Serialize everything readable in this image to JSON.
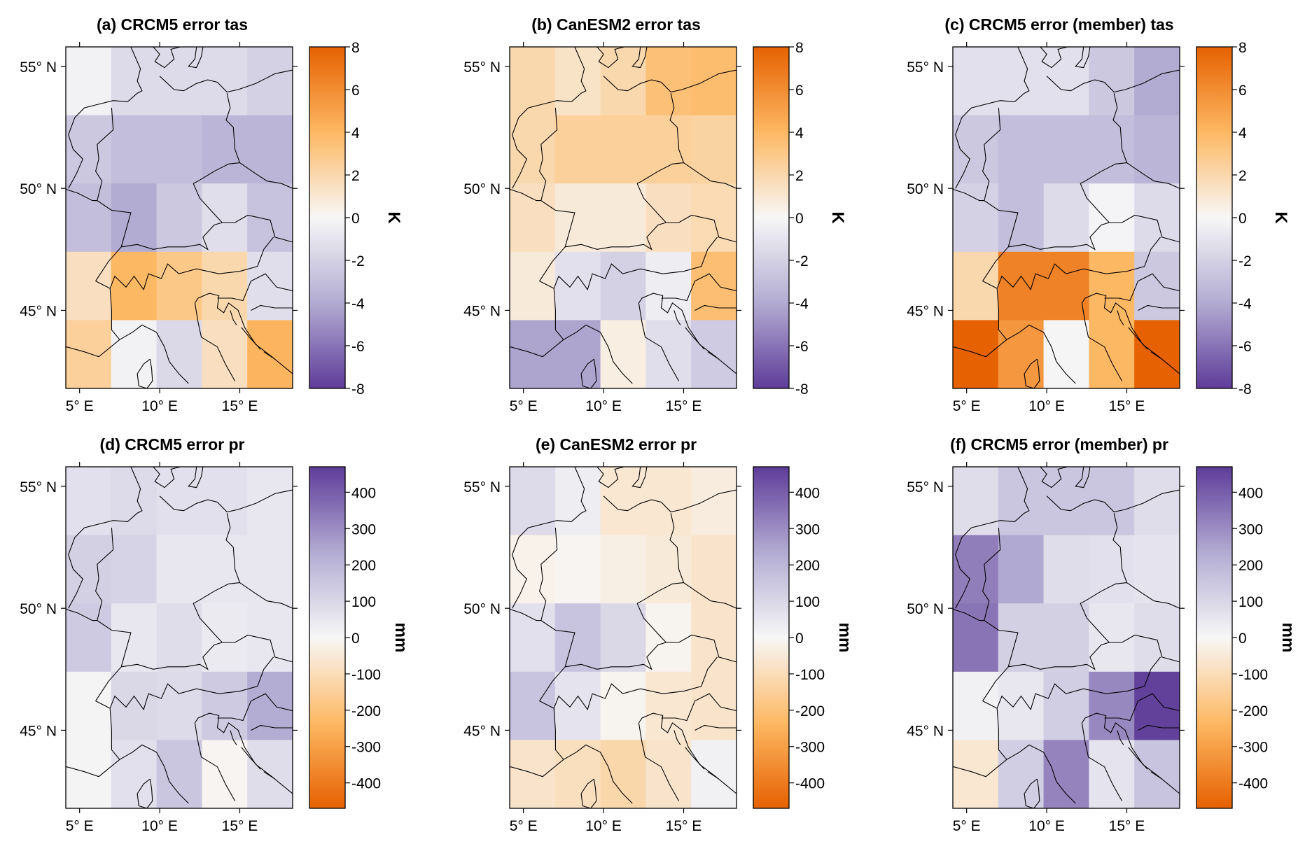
{
  "figure": {
    "colormap": [
      "#e66101",
      "#fdb863",
      "#f7f7f7",
      "#b2abd2",
      "#5e3c99"
    ],
    "colors": {
      "positive_warm": "#e66101",
      "neutral": "#f7f7f7",
      "negative_cool": "#5e3c99",
      "outline": "#000000"
    }
  },
  "chart_data": [
    {
      "type": "heatmap",
      "id": "a",
      "title": "(a) CRCM5 error tas",
      "variable": "tas",
      "unit": "K",
      "xlabel": "",
      "ylabel": "",
      "x_ticks": [
        "5° E",
        "10° E",
        "15° E"
      ],
      "x_tick_values": [
        5,
        10,
        15
      ],
      "y_ticks": [
        "55° N",
        "50° N",
        "45° N"
      ],
      "y_tick_values": [
        55,
        50,
        45
      ],
      "xlim": [
        4.14,
        18.3
      ],
      "ylim": [
        41.8,
        55.8
      ],
      "colorbar": {
        "min": -8,
        "max": 8,
        "ticks": [
          8,
          6,
          4,
          2,
          0,
          -2,
          -4,
          -6,
          -8
        ],
        "reversed": false
      },
      "grid_rows_north_to_south": [
        [
          -0.3,
          -1.5,
          -1.5,
          -1.5,
          -2.0
        ],
        [
          -2.5,
          -3.0,
          -3.0,
          -3.5,
          -3.5
        ],
        [
          -3.0,
          -4.0,
          -2.5,
          -1.3,
          -2.8
        ],
        [
          1.5,
          4.0,
          3.0,
          2.0,
          -1.3
        ],
        [
          2.5,
          -0.3,
          -1.6,
          1.5,
          4.2
        ]
      ]
    },
    {
      "type": "heatmap",
      "id": "b",
      "title": "(b) CanESM2 error tas",
      "variable": "tas",
      "unit": "K",
      "xlabel": "",
      "ylabel": "",
      "x_ticks": [
        "5° E",
        "10° E",
        "15° E"
      ],
      "x_tick_values": [
        5,
        10,
        15
      ],
      "y_ticks": [
        "55° N",
        "50° N",
        "45° N"
      ],
      "y_tick_values": [
        55,
        50,
        45
      ],
      "xlim": [
        4.14,
        18.3
      ],
      "ylim": [
        41.8,
        55.8
      ],
      "colorbar": {
        "min": -8,
        "max": 8,
        "ticks": [
          8,
          6,
          4,
          2,
          0,
          -2,
          -4,
          -6,
          -8
        ],
        "reversed": false
      },
      "grid_rows_north_to_south": [
        [
          2.0,
          1.3,
          2.0,
          3.5,
          3.7
        ],
        [
          2.0,
          2.5,
          2.5,
          2.5,
          2.3
        ],
        [
          1.5,
          0.8,
          0.8,
          1.5,
          1.8
        ],
        [
          0.8,
          -1.2,
          -2.0,
          -0.5,
          3.6
        ],
        [
          -4.2,
          -4.2,
          0.6,
          -1.3,
          -2.3
        ]
      ]
    },
    {
      "type": "heatmap",
      "id": "c",
      "title": "(c) CRCM5 error (member) tas",
      "variable": "tas",
      "unit": "K",
      "xlabel": "",
      "ylabel": "",
      "x_ticks": [
        "5° E",
        "10° E",
        "15° E"
      ],
      "x_tick_values": [
        5,
        10,
        15
      ],
      "y_ticks": [
        "55° N",
        "50° N",
        "45° N"
      ],
      "y_tick_values": [
        55,
        50,
        45
      ],
      "xlim": [
        4.14,
        18.3
      ],
      "ylim": [
        41.8,
        55.8
      ],
      "colorbar": {
        "min": -8,
        "max": 8,
        "ticks": [
          8,
          6,
          4,
          2,
          0,
          -2,
          -4,
          -6,
          -8
        ],
        "reversed": false
      },
      "grid_rows_north_to_south": [
        [
          -1.2,
          -1.2,
          -1.2,
          -2.5,
          -4.0
        ],
        [
          -2.5,
          -3.0,
          -3.0,
          -3.0,
          -3.5
        ],
        [
          -2.0,
          -3.0,
          -1.5,
          -0.2,
          -1.5
        ],
        [
          2.0,
          6.5,
          6.5,
          4.0,
          -2.5
        ],
        [
          8.0,
          5.5,
          -0.1,
          4.0,
          8.0
        ]
      ]
    },
    {
      "type": "heatmap",
      "id": "d",
      "title": "(d) CRCM5 error pr",
      "variable": "pr",
      "unit": "mm",
      "xlabel": "",
      "ylabel": "",
      "x_ticks": [
        "5° E",
        "10° E",
        "15° E"
      ],
      "x_tick_values": [
        5,
        10,
        15
      ],
      "y_ticks": [
        "55° N",
        "50° N",
        "45° N"
      ],
      "y_tick_values": [
        55,
        50,
        45
      ],
      "xlim": [
        4.14,
        18.3
      ],
      "ylim": [
        41.8,
        55.8
      ],
      "colorbar": {
        "min": -470,
        "max": 470,
        "ticks": [
          400,
          300,
          200,
          100,
          0,
          -100,
          -200,
          -300,
          -400
        ],
        "reversed": true
      },
      "grid_rows_north_to_south": [
        [
          70,
          90,
          70,
          70,
          50
        ],
        [
          120,
          110,
          50,
          50,
          50
        ],
        [
          140,
          50,
          80,
          40,
          50
        ],
        [
          10,
          100,
          90,
          140,
          230
        ],
        [
          10,
          70,
          150,
          -10,
          80
        ]
      ]
    },
    {
      "type": "heatmap",
      "id": "e",
      "title": "(e) CanESM2 error pr",
      "variable": "pr",
      "unit": "mm",
      "xlabel": "",
      "ylabel": "",
      "x_ticks": [
        "5° E",
        "10° E",
        "15° E"
      ],
      "x_tick_values": [
        5,
        10,
        15
      ],
      "y_ticks": [
        "55° N",
        "50° N",
        "45° N"
      ],
      "y_tick_values": [
        55,
        50,
        45
      ],
      "xlim": [
        4.14,
        18.3
      ],
      "ylim": [
        41.8,
        55.8
      ],
      "colorbar": {
        "min": -470,
        "max": 470,
        "ticks": [
          400,
          300,
          200,
          100,
          0,
          -100,
          -200,
          -300,
          -400
        ],
        "reversed": true
      },
      "grid_rows_north_to_south": [
        [
          90,
          30,
          -60,
          -60,
          -40
        ],
        [
          -20,
          -10,
          -30,
          -50,
          -70
        ],
        [
          70,
          160,
          100,
          -15,
          -70
        ],
        [
          160,
          60,
          -15,
          -60,
          -70
        ],
        [
          -70,
          -90,
          -120,
          -70,
          20
        ]
      ]
    },
    {
      "type": "heatmap",
      "id": "f",
      "title": "(f) CRCM5 error (member) pr",
      "variable": "pr",
      "unit": "mm",
      "xlabel": "",
      "ylabel": "",
      "x_ticks": [
        "5° E",
        "10° E",
        "15° E"
      ],
      "x_tick_values": [
        5,
        10,
        15
      ],
      "y_ticks": [
        "55° N",
        "50° N",
        "45° N"
      ],
      "y_tick_values": [
        55,
        50,
        45
      ],
      "xlim": [
        4.14,
        18.3
      ],
      "ylim": [
        41.8,
        55.8
      ],
      "colorbar": {
        "min": -470,
        "max": 470,
        "ticks": [
          400,
          300,
          200,
          100,
          0,
          -100,
          -200,
          -300,
          -400
        ],
        "reversed": true
      },
      "grid_rows_north_to_south": [
        [
          80,
          150,
          150,
          150,
          80
        ],
        [
          330,
          240,
          80,
          70,
          60
        ],
        [
          350,
          120,
          120,
          50,
          80
        ],
        [
          20,
          50,
          130,
          310,
          460
        ],
        [
          -60,
          130,
          320,
          60,
          160
        ]
      ]
    }
  ]
}
